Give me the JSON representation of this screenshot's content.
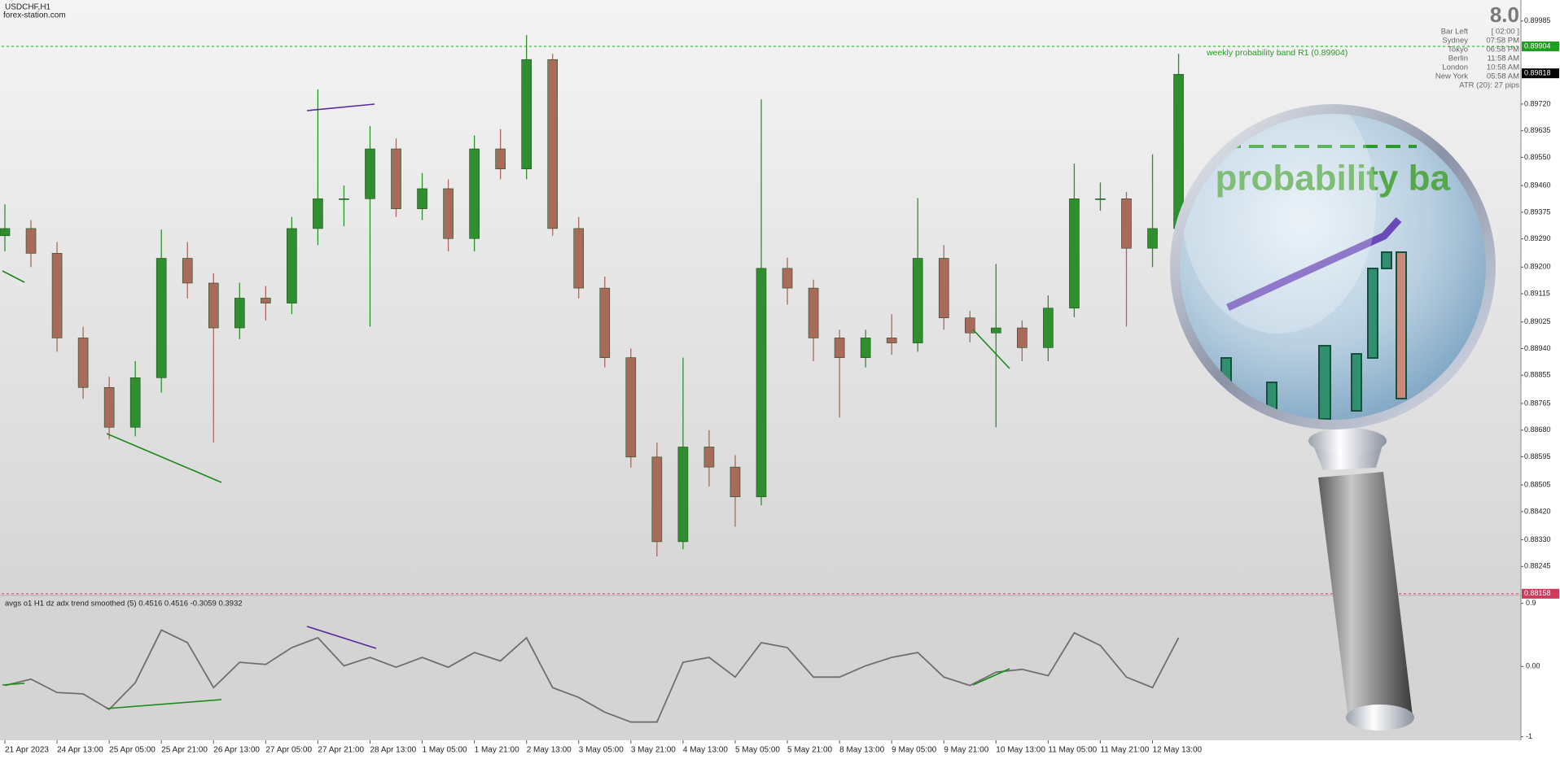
{
  "header": {
    "symbol": "USDCHF,H1",
    "site": "forex-station.com"
  },
  "info_panel": {
    "big_value": "8.0",
    "rows": [
      [
        "Bar Left",
        "[ 02:00 ]"
      ],
      [
        "Sydney",
        "07:58 PM"
      ],
      [
        "Tokyo",
        "06:58 PM"
      ],
      [
        "Berlin",
        "11:58 AM"
      ],
      [
        "London",
        "10:58 AM"
      ],
      [
        "New York",
        "05:58 AM"
      ]
    ],
    "atr": "ATR (20): 27 pips"
  },
  "magnifier_text": "kly probability ba",
  "chart_data": [
    {
      "type": "candlestick",
      "x": [
        0,
        8,
        16,
        24,
        32,
        40,
        48,
        56,
        64,
        72,
        80,
        88,
        96,
        104,
        112,
        120,
        128,
        136,
        144,
        152,
        160,
        168,
        176,
        184,
        192,
        200,
        208,
        216,
        224,
        232,
        240,
        248,
        256,
        264,
        272,
        280,
        288,
        296,
        304,
        312,
        320,
        328,
        336,
        344,
        352,
        360
      ],
      "open": [
        0.893,
        0.89323,
        0.89244,
        0.88974,
        0.88816,
        0.88689,
        0.88847,
        0.89228,
        0.89149,
        0.89006,
        0.89101,
        0.89085,
        0.89323,
        0.89418,
        0.89418,
        0.89577,
        0.89386,
        0.8945,
        0.89291,
        0.89577,
        0.89513,
        0.89862,
        0.89323,
        0.89133,
        0.88911,
        0.88594,
        0.88324,
        0.88626,
        0.88562,
        0.88467,
        0.89196,
        0.89133,
        0.88974,
        0.88911,
        0.88974,
        0.88958,
        0.89228,
        0.89038,
        0.8899,
        0.89006,
        0.88943,
        0.89069,
        0.89418,
        0.89418,
        0.8926,
        0.89323
      ],
      "high": [
        0.894,
        0.8935,
        0.8928,
        0.8901,
        0.8885,
        0.889,
        0.8932,
        0.8928,
        0.8918,
        0.8915,
        0.8914,
        0.8936,
        0.89767,
        0.8946,
        0.8965,
        0.8961,
        0.895,
        0.8948,
        0.8962,
        0.8964,
        0.8994,
        0.8988,
        0.8936,
        0.8917,
        0.8894,
        0.8864,
        0.88911,
        0.8868,
        0.886,
        0.89735,
        0.8923,
        0.8916,
        0.89,
        0.89,
        0.8905,
        0.8942,
        0.8927,
        0.8906,
        0.8921,
        0.8903,
        0.8911,
        0.8953,
        0.8947,
        0.8944,
        0.8956,
        0.8988
      ],
      "low": [
        0.8925,
        0.892,
        0.8893,
        0.8878,
        0.8865,
        0.8866,
        0.888,
        0.891,
        0.88641,
        0.8897,
        0.8903,
        0.8905,
        0.8927,
        0.8933,
        0.8901,
        0.8936,
        0.8935,
        0.8925,
        0.8925,
        0.8948,
        0.8948,
        0.893,
        0.891,
        0.8888,
        0.8856,
        0.88277,
        0.883,
        0.885,
        0.88372,
        0.8844,
        0.8908,
        0.889,
        0.8872,
        0.8888,
        0.8892,
        0.8893,
        0.89,
        0.8896,
        0.88689,
        0.889,
        0.889,
        0.8904,
        0.8938,
        0.8901,
        0.892,
        0.893
      ],
      "close": [
        0.89323,
        0.89244,
        0.88974,
        0.88816,
        0.88689,
        0.88847,
        0.89228,
        0.89149,
        0.89006,
        0.89101,
        0.89085,
        0.89323,
        0.89418,
        0.89418,
        0.89577,
        0.89386,
        0.8945,
        0.89291,
        0.89577,
        0.89513,
        0.89862,
        0.89323,
        0.89133,
        0.88911,
        0.88594,
        0.88324,
        0.88626,
        0.88562,
        0.88467,
        0.89196,
        0.89133,
        0.88974,
        0.88911,
        0.88974,
        0.88958,
        0.89228,
        0.89038,
        0.8899,
        0.89006,
        0.88943,
        0.89069,
        0.89418,
        0.89418,
        0.8926,
        0.89323,
        0.89815
      ],
      "up_color": "#2f8f2f",
      "down_color": "#a86a5a",
      "xlim": [
        -1,
        465
      ],
      "ylim": [
        0.88155,
        0.90052
      ],
      "yticks": [
        0.89985,
        {
          "value": 0.8972,
          "label": "0.89720"
        },
        0.89635,
        {
          "value": 0.8955,
          "label": "0.89550"
        },
        {
          "value": 0.8946,
          "label": "0.89460"
        },
        0.89375,
        {
          "value": 0.8929,
          "label": "0.89290"
        },
        {
          "value": 0.892,
          "label": "0.89200"
        },
        0.89115,
        0.89025,
        {
          "value": 0.8894,
          "label": "0.88940"
        },
        0.88855,
        0.88765,
        {
          "value": 0.8868,
          "label": "0.88680"
        },
        0.88595,
        0.88505,
        {
          "value": 0.8842,
          "label": "0.88420"
        },
        {
          "value": 0.8833,
          "label": "0.88330"
        },
        0.88245
      ],
      "xticks": [
        {
          "value": 0,
          "label": "21 Apr 2023"
        },
        {
          "value": 16,
          "label": "24 Apr 13:00"
        },
        {
          "value": 32,
          "label": "25 Apr 05:00"
        },
        {
          "value": 48,
          "label": "25 Apr 21:00"
        },
        {
          "value": 64,
          "label": "26 Apr 13:00"
        },
        {
          "value": 80,
          "label": "27 Apr 05:00"
        },
        {
          "value": 96,
          "label": "27 Apr 21:00"
        },
        {
          "value": 112,
          "label": "28 Apr 13:00"
        },
        {
          "value": 128,
          "label": "1 May 05:00"
        },
        {
          "value": 144,
          "label": "1 May 21:00"
        },
        {
          "value": 160,
          "label": "2 May 13:00"
        },
        {
          "value": 176,
          "label": "3 May 05:00"
        },
        {
          "value": 192,
          "label": "3 May 21:00"
        },
        {
          "value": 208,
          "label": "4 May 13:00"
        },
        {
          "value": 224,
          "label": "5 May 05:00"
        },
        {
          "value": 240,
          "label": "5 May 21:00"
        },
        {
          "value": 256,
          "label": "8 May 13:00"
        },
        {
          "value": 272,
          "label": "9 May 05:00"
        },
        {
          "value": 288,
          "label": "9 May 21:00"
        },
        {
          "value": 304,
          "label": "10 May 13:00"
        },
        {
          "value": 320,
          "label": "11 May 05:00"
        },
        {
          "value": 336,
          "label": "11 May 21:00"
        },
        {
          "value": 352,
          "label": "12 May 13:00"
        }
      ],
      "annotation": "weekly probability band R1 (0.89904)",
      "price_markers": [
        {
          "value": 0.89904,
          "color": "#1f9f1f",
          "dashed": true
        },
        {
          "value": 0.89818,
          "color": "#000000",
          "dashed": false
        },
        {
          "value": 0.88158,
          "color": "#d03a5a",
          "dashed": true
        }
      ]
    },
    {
      "type": "line",
      "title": "avgs o1 H1 dz adx trend smoothed (5) 0.4516 0.4516 -0.3059 0.3932",
      "x": [
        0,
        8,
        16,
        24,
        32,
        40,
        48,
        56,
        64,
        72,
        80,
        88,
        96,
        104,
        112,
        120,
        128,
        136,
        144,
        152,
        160,
        168,
        176,
        184,
        192,
        200,
        208,
        216,
        224,
        232,
        240,
        248,
        256,
        264,
        272,
        280,
        288,
        296,
        304,
        312,
        320,
        328,
        336,
        344,
        352,
        360
      ],
      "values": [
        -0.27,
        -0.18,
        -0.37,
        -0.39,
        -0.61,
        -0.23,
        0.52,
        0.34,
        -0.3,
        0.06,
        0.03,
        0.27,
        0.41,
        0.01,
        0.13,
        -0.01,
        0.13,
        -0.01,
        0.2,
        0.08,
        0.41,
        -0.3,
        -0.44,
        -0.65,
        -0.79,
        -0.79,
        0.06,
        0.13,
        -0.15,
        0.34,
        0.27,
        -0.15,
        -0.15,
        0.01,
        0.13,
        0.2,
        -0.15,
        -0.27,
        -0.08,
        -0.04,
        -0.13,
        0.48,
        0.3,
        -0.15,
        -0.3,
        0.41
      ],
      "color": "#6f6f6f",
      "xlim": [
        -1,
        465
      ],
      "ylim": [
        -1.05,
        1.0
      ],
      "yticks": [
        0.9,
        {
          "value": 0,
          "label": "0.00"
        },
        -1
      ]
    }
  ]
}
